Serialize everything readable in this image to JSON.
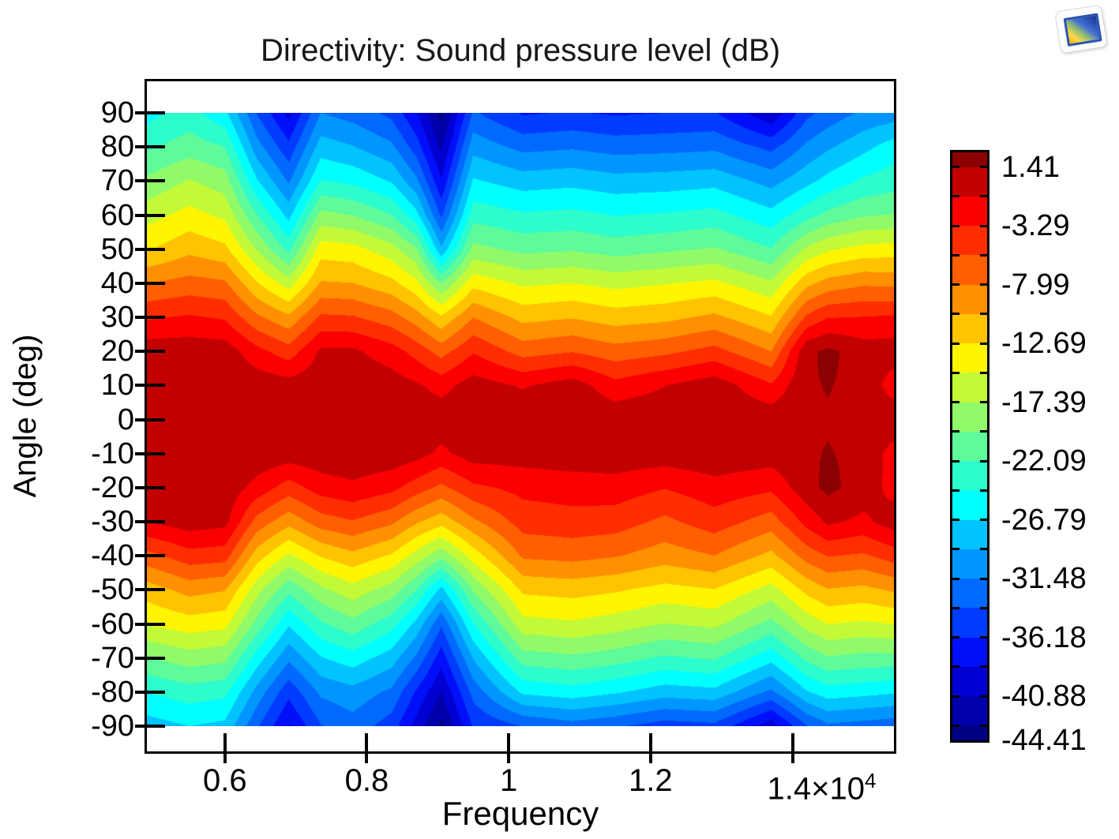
{
  "title": "Directivity: Sound pressure level (dB)",
  "axes": {
    "x": {
      "label": "Frequency",
      "min": 0.49,
      "max": 1.543,
      "ticks": [
        {
          "value": 0.6,
          "text": "0.6"
        },
        {
          "value": 0.8,
          "text": "0.8"
        },
        {
          "value": 1.0,
          "text": "1"
        },
        {
          "value": 1.2,
          "text": "1.2"
        },
        {
          "value": 1.4,
          "text": "1.4",
          "suffix_base": "×10",
          "suffix_exp": "4"
        }
      ]
    },
    "y": {
      "label": "Angle (deg)",
      "data_min": -90,
      "data_max": 90,
      "ticks": [
        90,
        80,
        70,
        60,
        50,
        40,
        30,
        20,
        10,
        0,
        -10,
        -20,
        -30,
        -40,
        -50,
        -60,
        -70,
        -80,
        -90
      ]
    }
  },
  "colorbar": {
    "value_max": 2.59,
    "band_top": 1.41,
    "band_step": 2.35,
    "value_min": -44.41,
    "colors_top_to_bottom": [
      "#8b0000",
      "#c30000",
      "#fa0000",
      "#ff2d00",
      "#ff5f00",
      "#ff9100",
      "#ffc300",
      "#fff500",
      "#c3fa37",
      "#91fa69",
      "#5ffb9b",
      "#2dfccd",
      "#00ffff",
      "#00c3ff",
      "#0096ff",
      "#0069ff",
      "#003cff",
      "#000ffa",
      "#0000d2",
      "#0000aa",
      "#000082"
    ],
    "labels": [
      {
        "value": 1.41,
        "text": "1.41"
      },
      {
        "value": -3.29,
        "text": "-3.29"
      },
      {
        "value": -7.99,
        "text": "-7.99"
      },
      {
        "value": -12.69,
        "text": "-12.69"
      },
      {
        "value": -17.39,
        "text": "-17.39"
      },
      {
        "value": -22.09,
        "text": "-22.09"
      },
      {
        "value": -26.79,
        "text": "-26.79"
      },
      {
        "value": -31.48,
        "text": "-31.48"
      },
      {
        "value": -36.18,
        "text": "-36.18"
      },
      {
        "value": -40.88,
        "text": "-40.88"
      },
      {
        "value": -44.41,
        "text": "-44.41"
      }
    ]
  },
  "chart_data": {
    "type": "heatmap",
    "title": "Directivity: Sound pressure level (dB)",
    "xlabel": "Frequency (×10⁴)",
    "ylabel": "Angle (deg)",
    "value_label": "Sound pressure level (dB)",
    "frequencies": [
      0.49,
      0.55,
      0.6,
      0.645,
      0.69,
      0.735,
      0.78,
      0.835,
      0.87,
      0.905,
      0.95,
      1.02,
      1.09,
      1.15,
      1.22,
      1.29,
      1.37,
      1.42,
      1.45,
      1.5,
      1.543
    ],
    "angles": [
      90,
      80,
      70,
      60,
      50,
      40,
      30,
      20,
      10,
      0,
      -10,
      -20,
      -30,
      -40,
      -50,
      -60,
      -70,
      -80,
      -90
    ],
    "values": [
      [
        -25.3,
        -23.5,
        -26.2,
        -34.0,
        -39.3,
        -31.5,
        -32.5,
        -34.5,
        -38.5,
        -44.2,
        -33.5,
        -36.5,
        -36.0,
        -36.5,
        -36.2,
        -36.0,
        -40.5,
        -34.5,
        -33.0,
        -31.0,
        -30.5
      ],
      [
        -22.5,
        -20.9,
        -22.1,
        -30.5,
        -35.5,
        -28.0,
        -29.0,
        -31.0,
        -35.0,
        -41.5,
        -30.0,
        -32.2,
        -31.8,
        -32.5,
        -32.3,
        -32.0,
        -34.5,
        -31.0,
        -29.5,
        -27.5,
        -25.6
      ],
      [
        -19.2,
        -17.2,
        -18.6,
        -26.5,
        -31.8,
        -24.3,
        -25.0,
        -27.0,
        -31.0,
        -38.3,
        -26.5,
        -27.9,
        -27.5,
        -28.2,
        -28.0,
        -27.6,
        -30.0,
        -27.5,
        -26.0,
        -24.0,
        -23.2
      ],
      [
        -16.0,
        -14.2,
        -15.6,
        -22.0,
        -27.6,
        -19.0,
        -19.8,
        -22.0,
        -26.0,
        -34.3,
        -23.0,
        -24.1,
        -23.8,
        -24.5,
        -24.2,
        -23.6,
        -26.0,
        -23.0,
        -21.4,
        -20.0,
        -19.6
      ],
      [
        -13.0,
        -11.0,
        -12.1,
        -17.5,
        -22.8,
        -13.8,
        -14.2,
        -16.5,
        -19.5,
        -28.7,
        -19.0,
        -20.4,
        -20.0,
        -20.8,
        -20.2,
        -19.5,
        -22.0,
        -17.0,
        -15.4,
        -14.2,
        -14.0
      ],
      [
        -8.0,
        -7.1,
        -7.6,
        -12.5,
        -16.2,
        -10.1,
        -10.3,
        -12.0,
        -14.5,
        -19.9,
        -13.5,
        -15.5,
        -15.0,
        -15.8,
        -15.2,
        -14.5,
        -17.0,
        -11.0,
        -9.4,
        -8.4,
        -8.6
      ],
      [
        -3.6,
        -3.0,
        -3.6,
        -7.5,
        -9.8,
        -5.2,
        -5.4,
        -7.0,
        -9.2,
        -12.3,
        -8.0,
        -11.1,
        -10.5,
        -11.5,
        -11.0,
        -9.8,
        -12.5,
        -5.2,
        -3.4,
        -3.2,
        -3.0
      ],
      [
        0.5,
        0.6,
        0.4,
        -2.5,
        -4.6,
        -0.5,
        -0.5,
        -2.2,
        -4.2,
        -6.6,
        -3.5,
        -6.6,
        -5.8,
        -7.0,
        -6.2,
        -4.8,
        -8.0,
        0.9,
        1.95,
        0.3,
        0.3
      ],
      [
        0.9,
        1.0,
        0.9,
        0.6,
        0.2,
        0.5,
        0.8,
        0.3,
        -0.6,
        -1.8,
        0.2,
        -1.2,
        0.3,
        -2.5,
        -1.0,
        0.5,
        -3.0,
        1.2,
        1.5,
        0.9,
        -2.2
      ],
      [
        1.2,
        1.2,
        1.1,
        1.0,
        0.9,
        1.0,
        1.1,
        0.9,
        0.7,
        0.5,
        0.9,
        0.9,
        1.0,
        0.8,
        0.9,
        1.0,
        0.7,
        1.2,
        1.25,
        1.1,
        0.8
      ],
      [
        1.1,
        1.15,
        1.1,
        0.8,
        0.4,
        0.7,
        0.8,
        0.6,
        0.0,
        -1.5,
        0.2,
        0.2,
        0.5,
        0.6,
        0.4,
        0.8,
        0.3,
        1.2,
        1.5,
        1.0,
        -2.0
      ],
      [
        0.8,
        0.9,
        0.7,
        -1.8,
        -4.4,
        -2.2,
        -1.4,
        -2.6,
        -4.5,
        -6.2,
        -3.8,
        -2.6,
        -2.2,
        -2.0,
        -3.2,
        -1.8,
        -2.8,
        0.6,
        2.0,
        0.4,
        -1.8
      ],
      [
        -0.8,
        0.3,
        -0.2,
        -6.5,
        -9.5,
        -6.8,
        -5.8,
        -7.5,
        -10.0,
        -11.8,
        -8.5,
        -4.6,
        -4.2,
        -4.5,
        -6.2,
        -4.4,
        -6.8,
        -2.5,
        -0.5,
        -1.5,
        0.3
      ],
      [
        -6.5,
        -4.2,
        -4.6,
        -11.5,
        -15.5,
        -12.5,
        -11.0,
        -13.0,
        -16.0,
        -19.0,
        -14.0,
        -7.6,
        -7.2,
        -7.8,
        -9.2,
        -8.0,
        -11.0,
        -7.0,
        -5.5,
        -6.0,
        -4.5
      ],
      [
        -11.5,
        -9.5,
        -10.2,
        -16.5,
        -21.5,
        -18.0,
        -16.0,
        -18.5,
        -22.0,
        -27.5,
        -19.5,
        -12.2,
        -11.8,
        -12.4,
        -13.5,
        -12.8,
        -16.0,
        -12.0,
        -10.5,
        -11.0,
        -10.0
      ],
      [
        -14.9,
        -13.8,
        -14.3,
        -20.5,
        -26.5,
        -22.5,
        -20.5,
        -23.5,
        -27.5,
        -33.5,
        -24.5,
        -15.9,
        -15.4,
        -16.2,
        -17.5,
        -16.8,
        -20.5,
        -16.5,
        -15.0,
        -15.5,
        -15.0
      ],
      [
        -19.9,
        -18.5,
        -19.1,
        -25.5,
        -31.0,
        -27.0,
        -25.5,
        -28.0,
        -32.0,
        -37.5,
        -29.0,
        -20.9,
        -20.2,
        -21.0,
        -22.5,
        -21.8,
        -26.0,
        -21.5,
        -20.0,
        -20.5,
        -20.5
      ],
      [
        -24.4,
        -23.2,
        -23.8,
        -30.0,
        -35.5,
        -31.0,
        -30.0,
        -32.0,
        -36.5,
        -41.0,
        -33.0,
        -26.3,
        -25.5,
        -26.5,
        -28.0,
        -27.5,
        -32.0,
        -27.0,
        -25.5,
        -26.0,
        -26.5
      ],
      [
        -27.9,
        -26.8,
        -27.4,
        -33.5,
        -38.8,
        -34.0,
        -32.5,
        -35.0,
        -39.5,
        -43.9,
        -36.0,
        -33.8,
        -32.5,
        -33.5,
        -35.0,
        -34.5,
        -40.0,
        -34.0,
        -32.0,
        -32.5,
        -33.0
      ]
    ]
  }
}
